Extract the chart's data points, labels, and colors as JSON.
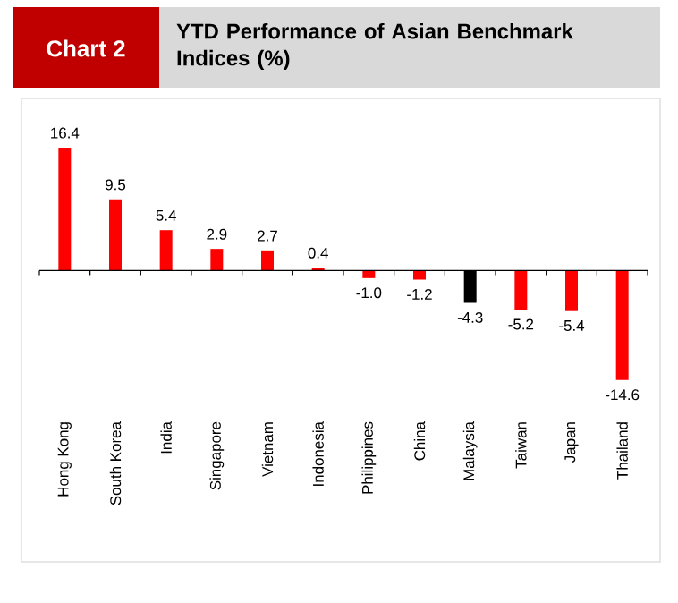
{
  "chart_data": {
    "type": "bar",
    "title": "YTD Performance of Asian Benchmark Indices (%)",
    "annotations": [
      "Chart 2"
    ],
    "categories": [
      "Hong Kong",
      "South Korea",
      "India",
      "Singapore",
      "Vietnam",
      "Indonesia",
      "Philippines",
      "China",
      "Malaysia",
      "Taiwan",
      "Japan",
      "Thailand"
    ],
    "values": [
      16.4,
      9.5,
      5.4,
      2.9,
      2.7,
      0.4,
      -1.0,
      -1.2,
      -4.3,
      -5.2,
      -5.4,
      -14.6
    ],
    "value_labels": [
      "16.4",
      "9.5",
      "5.4",
      "2.9",
      "2.7",
      "0.4",
      "-1.0",
      "-1.2",
      "-4.3",
      "-5.2",
      "-5.4",
      "-14.6"
    ],
    "colors": [
      "#ff0000",
      "#ff0000",
      "#ff0000",
      "#ff0000",
      "#ff0000",
      "#ff0000",
      "#ff0000",
      "#ff0000",
      "#000000",
      "#ff0000",
      "#ff0000",
      "#ff0000"
    ]
  }
}
